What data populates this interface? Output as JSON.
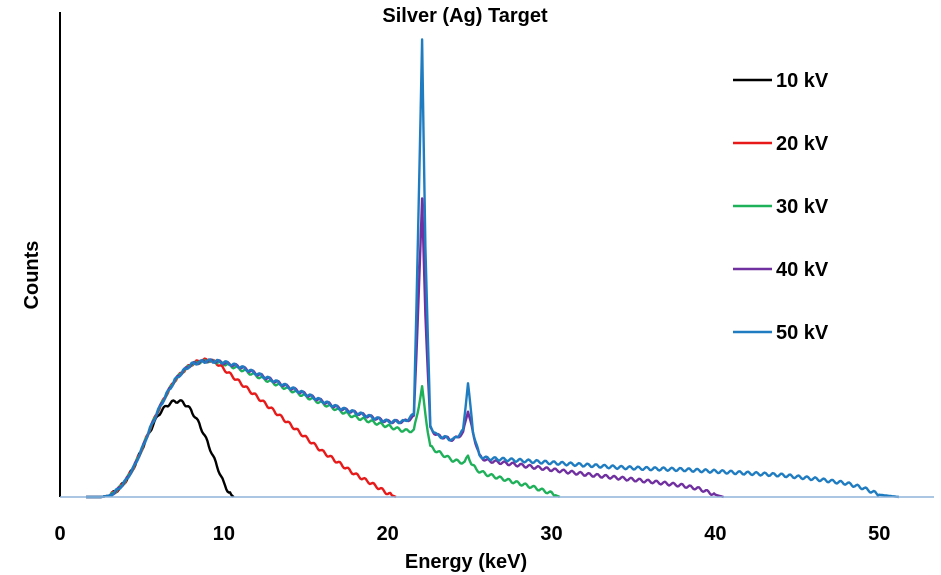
{
  "chart_data": {
    "type": "line",
    "title": "Silver (Ag) Target",
    "xlabel": "Energy (keV)",
    "ylabel": "Counts",
    "xlim": [
      0,
      52
    ],
    "ylim": [
      0,
      100
    ],
    "x_ticks": [
      "0",
      "10",
      "20",
      "30",
      "40",
      "50"
    ],
    "y_ticks_shown": false,
    "grid": false,
    "legend_position": "top-right",
    "series": [
      {
        "name": "10 kV",
        "color": "#000000",
        "x": [
          1.6,
          2.5,
          3.0,
          3.5,
          4.0,
          4.5,
          5.0,
          5.5,
          6.0,
          6.5,
          7.0,
          7.5,
          8.0,
          8.5,
          9.0,
          9.5,
          10.0,
          10.3,
          10.6
        ],
        "y": [
          0,
          0,
          0.3,
          1.5,
          3.5,
          6.5,
          10.5,
          14.5,
          18.0,
          20.0,
          21.0,
          20.8,
          19.0,
          16.0,
          12.0,
          7.5,
          3.0,
          1.0,
          0
        ]
      },
      {
        "name": "20 kV",
        "color": "#e81919",
        "x": [
          1.6,
          2.5,
          3.0,
          3.5,
          4.0,
          4.5,
          5.0,
          5.5,
          6.0,
          6.5,
          7.0,
          7.5,
          8.0,
          8.5,
          9.0,
          9.5,
          10.0,
          11.0,
          12.0,
          13.0,
          14.0,
          15.0,
          16.0,
          17.0,
          18.0,
          19.0,
          20.0,
          20.5
        ],
        "y": [
          0,
          0,
          0.3,
          1.5,
          3.5,
          6.5,
          10.5,
          15.0,
          19.0,
          22.5,
          25.5,
          27.5,
          29.0,
          29.8,
          30.0,
          29.5,
          28.0,
          25.0,
          22.0,
          19.0,
          16.0,
          13.0,
          10.0,
          7.5,
          5.0,
          3.0,
          0.8,
          0
        ]
      },
      {
        "name": "30 kV",
        "color": "#1fb05a",
        "x": [
          1.6,
          2.5,
          3.0,
          3.5,
          4.0,
          4.5,
          5.0,
          5.5,
          6.0,
          6.5,
          7.0,
          7.5,
          8.0,
          8.5,
          9.0,
          9.5,
          10.0,
          11.0,
          12.0,
          13.0,
          14.0,
          15.0,
          16.0,
          17.0,
          18.0,
          19.0,
          20.0,
          21.0,
          21.6,
          21.9,
          22.1,
          22.3,
          22.6,
          23.0,
          24.0,
          24.7,
          24.9,
          25.1,
          25.4,
          26.0,
          27.0,
          28.0,
          29.0,
          30.0,
          30.5
        ],
        "y": [
          0,
          0,
          0.3,
          1.5,
          3.5,
          6.5,
          10.5,
          15.0,
          19.0,
          22.5,
          25.5,
          27.5,
          29.0,
          29.5,
          29.8,
          29.6,
          29.2,
          28.0,
          26.5,
          25.0,
          23.5,
          22.0,
          20.5,
          19.0,
          17.5,
          16.5,
          15.5,
          14.5,
          14.5,
          20.0,
          24.0,
          18.0,
          11.0,
          10.0,
          8.0,
          7.5,
          9.0,
          7.5,
          6.0,
          5.0,
          4.0,
          3.0,
          2.0,
          0.8,
          0
        ]
      },
      {
        "name": "40 kV",
        "color": "#7030a0",
        "x": [
          1.6,
          2.5,
          3.0,
          3.5,
          4.0,
          4.5,
          5.0,
          5.5,
          6.0,
          6.5,
          7.0,
          7.5,
          8.0,
          8.5,
          9.0,
          9.5,
          10.0,
          11.0,
          12.0,
          13.0,
          14.0,
          15.0,
          16.0,
          17.0,
          18.0,
          19.0,
          20.0,
          21.0,
          21.6,
          21.9,
          22.1,
          22.3,
          22.6,
          23.0,
          24.0,
          24.6,
          24.9,
          25.2,
          25.6,
          26.0,
          28.0,
          30.0,
          32.0,
          34.0,
          36.0,
          38.0,
          39.0,
          40.0,
          40.5
        ],
        "y": [
          0,
          0,
          0.3,
          1.5,
          3.5,
          6.5,
          10.5,
          15.0,
          19.0,
          22.5,
          25.5,
          27.5,
          29.0,
          29.5,
          29.8,
          29.7,
          29.4,
          28.5,
          27.0,
          25.5,
          24.0,
          22.5,
          21.0,
          19.5,
          18.5,
          17.5,
          16.5,
          16.5,
          17.5,
          45.0,
          65.0,
          40.0,
          15.0,
          13.5,
          12.5,
          14.0,
          19.0,
          14.0,
          9.0,
          8.0,
          7.0,
          6.0,
          5.0,
          4.2,
          3.4,
          2.5,
          1.8,
          0.5,
          0
        ]
      },
      {
        "name": "50 kV",
        "color": "#1f7cc1",
        "x": [
          1.6,
          2.5,
          3.0,
          3.5,
          4.0,
          4.5,
          5.0,
          5.5,
          6.0,
          6.5,
          7.0,
          7.5,
          8.0,
          8.5,
          9.0,
          9.5,
          10.0,
          11.0,
          12.0,
          13.0,
          14.0,
          15.0,
          16.0,
          17.0,
          18.0,
          19.0,
          20.0,
          21.0,
          21.6,
          21.9,
          22.1,
          22.3,
          22.6,
          23.0,
          24.0,
          24.6,
          24.9,
          25.2,
          25.6,
          26.0,
          28.0,
          30.0,
          32.0,
          34.0,
          36.0,
          38.0,
          40.0,
          42.0,
          44.0,
          46.0,
          48.0,
          49.0,
          50.0,
          51.2
        ],
        "y": [
          0,
          0,
          0.3,
          1.5,
          3.5,
          6.5,
          10.5,
          15.0,
          19.0,
          22.5,
          25.5,
          27.5,
          29.0,
          29.5,
          29.8,
          29.7,
          29.5,
          28.5,
          27.0,
          25.5,
          24.0,
          22.5,
          21.0,
          19.5,
          18.5,
          17.5,
          16.5,
          16.5,
          18.0,
          65.0,
          100.0,
          55.0,
          15.5,
          13.5,
          12.5,
          14.5,
          25.0,
          14.5,
          9.0,
          8.5,
          8.0,
          7.5,
          7.0,
          6.5,
          6.2,
          6.0,
          5.6,
          5.2,
          4.8,
          4.0,
          3.0,
          2.0,
          0.5,
          0
        ]
      }
    ]
  }
}
